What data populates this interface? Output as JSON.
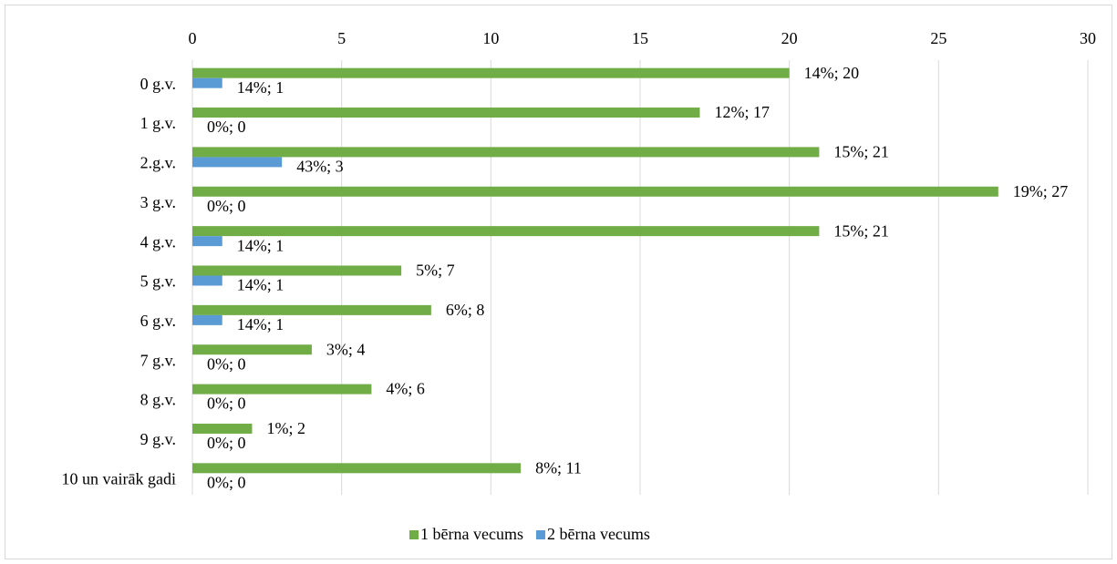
{
  "chart_data": {
    "type": "bar",
    "orientation": "horizontal",
    "categories": [
      "0 g.v.",
      "1 g.v.",
      "2.g.v.",
      "3 g.v.",
      "4 g.v.",
      "5 g.v.",
      "6 g.v.",
      "7 g.v.",
      "8 g.v.",
      "9 g.v.",
      "10 un vairāk gadi"
    ],
    "series": [
      {
        "name": "1 bērna vecums",
        "color": "#70ad47",
        "values": [
          20,
          17,
          21,
          27,
          21,
          7,
          8,
          4,
          6,
          2,
          11
        ],
        "value_labels": [
          "14%; 20",
          "12%; 17",
          "15%; 21",
          "19%; 27",
          "15%; 21",
          "5%; 7",
          "6%; 8",
          "3%; 4",
          "4%; 6",
          "1%; 2",
          "8%; 11"
        ]
      },
      {
        "name": "2 bērna vecums",
        "color": "#5b9bd5",
        "values": [
          1,
          0,
          3,
          0,
          1,
          1,
          1,
          0,
          0,
          0,
          0
        ],
        "value_labels": [
          "14%; 1",
          "0%; 0",
          "43%; 3",
          "0%; 0",
          "14%; 1",
          "14%; 1",
          "14%; 1",
          "0%; 0",
          "0%; 0",
          "0%; 0",
          "0%; 0"
        ]
      }
    ],
    "xlim": [
      0,
      30
    ],
    "xticks": [
      0,
      5,
      10,
      15,
      20,
      25,
      30
    ],
    "grid": true,
    "legend": "bottom"
  }
}
